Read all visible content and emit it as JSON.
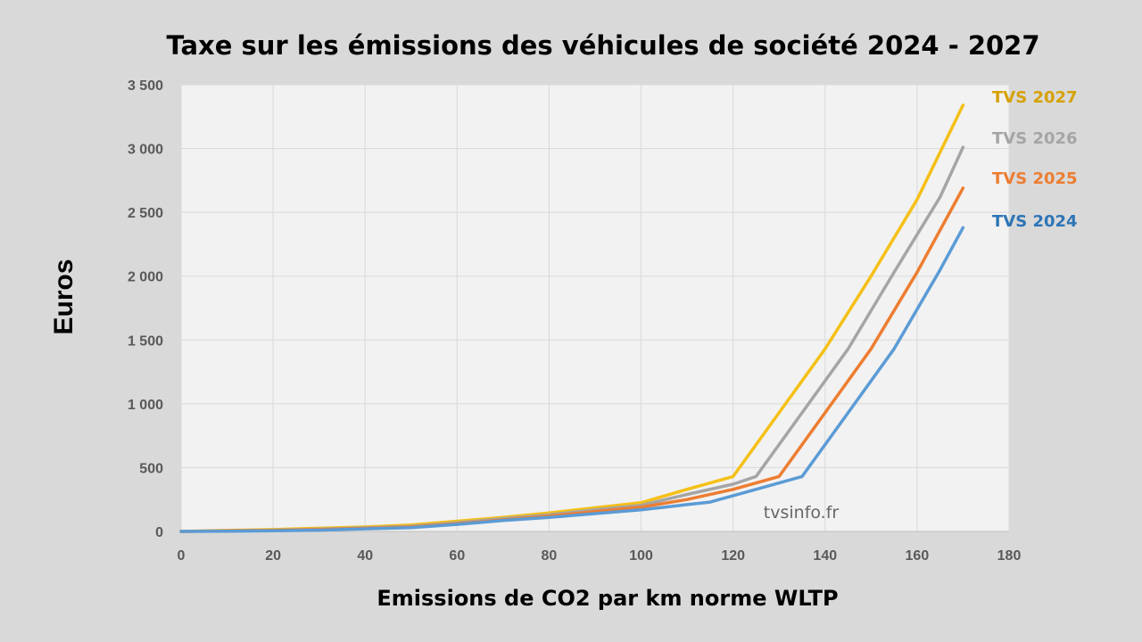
{
  "chart_data": {
    "type": "line",
    "title": "Taxe sur les émissions des véhicules de société 2024 - 2027",
    "xlabel": "Emissions de CO2 par km norme WLTP",
    "ylabel": "Euros",
    "xlim": [
      0,
      180
    ],
    "ylim": [
      0,
      3500
    ],
    "x_ticks": [
      0,
      20,
      40,
      60,
      80,
      100,
      120,
      140,
      160,
      180
    ],
    "y_ticks": [
      0,
      500,
      1000,
      1500,
      2000,
      2500,
      3000,
      3500
    ],
    "y_tick_labels": [
      "0",
      "500",
      "1 000",
      "1 500",
      "2 000",
      "2 500",
      "3 000",
      "3 500"
    ],
    "x_tick_labels": [
      "0",
      "20",
      "40",
      "60",
      "80",
      "100",
      "120",
      "140",
      "160",
      "180"
    ],
    "grid": true,
    "legend_placement": "right, at line ends",
    "watermark": "tvsinfo.fr",
    "plot_background": "#f2f2f2",
    "series": [
      {
        "name": "TVS 2027",
        "color": "#f5c017",
        "label_color": "#d6a100",
        "points": [
          [
            0,
            0
          ],
          [
            10,
            8
          ],
          [
            20,
            15
          ],
          [
            30,
            25
          ],
          [
            40,
            35
          ],
          [
            50,
            50
          ],
          [
            60,
            80
          ],
          [
            70,
            110
          ],
          [
            80,
            145
          ],
          [
            90,
            185
          ],
          [
            100,
            225
          ],
          [
            110,
            330
          ],
          [
            120,
            430
          ],
          [
            130,
            930
          ],
          [
            140,
            1430
          ],
          [
            150,
            2000
          ],
          [
            160,
            2600
          ],
          [
            170,
            3340
          ]
        ]
      },
      {
        "name": "TVS 2026",
        "color": "#a5a5a5",
        "label_color": "#a5a5a5",
        "points": [
          [
            0,
            0
          ],
          [
            10,
            5
          ],
          [
            20,
            10
          ],
          [
            30,
            18
          ],
          [
            40,
            28
          ],
          [
            50,
            40
          ],
          [
            60,
            68
          ],
          [
            70,
            100
          ],
          [
            80,
            130
          ],
          [
            90,
            170
          ],
          [
            100,
            205
          ],
          [
            110,
            290
          ],
          [
            120,
            370
          ],
          [
            125,
            430
          ],
          [
            135,
            930
          ],
          [
            145,
            1430
          ],
          [
            155,
            2030
          ],
          [
            165,
            2620
          ],
          [
            170,
            3010
          ]
        ]
      },
      {
        "name": "TVS 2025",
        "color": "#ed7d31",
        "label_color": "#ed7d31",
        "points": [
          [
            0,
            0
          ],
          [
            10,
            4
          ],
          [
            20,
            8
          ],
          [
            30,
            15
          ],
          [
            40,
            24
          ],
          [
            50,
            35
          ],
          [
            60,
            60
          ],
          [
            70,
            90
          ],
          [
            80,
            120
          ],
          [
            90,
            155
          ],
          [
            100,
            190
          ],
          [
            110,
            250
          ],
          [
            120,
            330
          ],
          [
            130,
            430
          ],
          [
            140,
            930
          ],
          [
            150,
            1430
          ],
          [
            160,
            2030
          ],
          [
            170,
            2690
          ]
        ]
      },
      {
        "name": "TVS 2024",
        "color": "#5b9bd5",
        "label_color": "#2e75b6",
        "points": [
          [
            0,
            0
          ],
          [
            10,
            2
          ],
          [
            20,
            5
          ],
          [
            30,
            10
          ],
          [
            40,
            20
          ],
          [
            50,
            30
          ],
          [
            60,
            55
          ],
          [
            70,
            85
          ],
          [
            80,
            110
          ],
          [
            90,
            140
          ],
          [
            100,
            170
          ],
          [
            110,
            210
          ],
          [
            115,
            230
          ],
          [
            125,
            330
          ],
          [
            135,
            430
          ],
          [
            145,
            930
          ],
          [
            155,
            1430
          ],
          [
            165,
            2050
          ],
          [
            170,
            2380
          ]
        ]
      }
    ]
  }
}
